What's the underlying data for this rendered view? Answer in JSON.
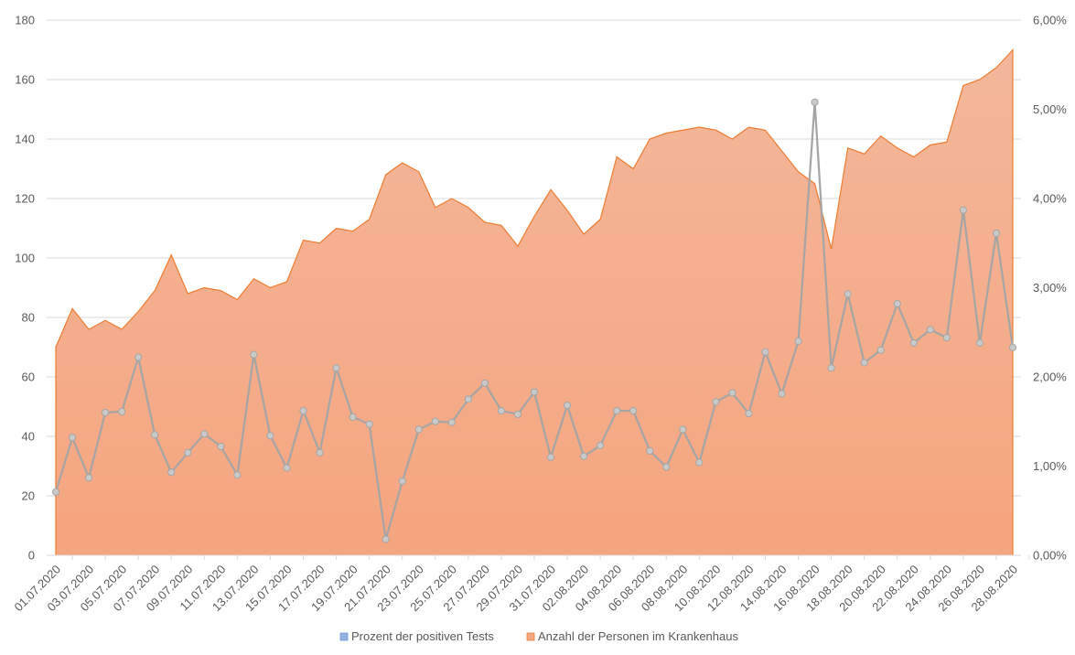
{
  "chart_data": {
    "type": "area",
    "title": "",
    "colors": {
      "area_top": "#f4b79b",
      "area_bottom": "#f5a57f",
      "area_line": "#ed7d31",
      "line": "#a5a5a5",
      "marker_fill": "#c9c9c9",
      "grid": "#d9d9d9",
      "legend_blue": "#8fb4e3",
      "legend_orange": "#f4a582"
    },
    "left_axis": {
      "min": 0,
      "max": 180,
      "step": 20,
      "ticks": [
        "0",
        "20",
        "40",
        "60",
        "80",
        "100",
        "120",
        "140",
        "160",
        "180"
      ]
    },
    "right_axis": {
      "min": 0,
      "max": 6,
      "step": 1,
      "ticks": [
        "0,00%",
        "1,00%",
        "2,00%",
        "3,00%",
        "4,00%",
        "5,00%",
        "6,00%"
      ]
    },
    "x_tick_labels": [
      "01.07.2020",
      "03.07.2020",
      "05.07.2020",
      "07.07.2020",
      "09.07.2020",
      "11.07.2020",
      "13.07.2020",
      "15.07.2020",
      "17.07.2020",
      "19.07.2020",
      "21.07.2020",
      "23.07.2020",
      "25.07.2020",
      "27.07.2020",
      "29.07.2020",
      "31.07.2020",
      "02.08.2020",
      "04.08.2020",
      "06.08.2020",
      "08.08.2020",
      "10.08.2020",
      "12.08.2020",
      "14.08.2020",
      "16.08.2020",
      "18.08.2020",
      "20.08.2020",
      "22.08.2020",
      "24.08.2020",
      "26.08.2020",
      "28.08.2020"
    ],
    "x_tick_positions": [
      0,
      2,
      4,
      6,
      8,
      10,
      12,
      14,
      16,
      18,
      20,
      22,
      24,
      26,
      28,
      30,
      32,
      34,
      36,
      38,
      40,
      42,
      44,
      46,
      48,
      50,
      52,
      54,
      56,
      58
    ],
    "series": [
      {
        "name": "Prozent der positiven Tests",
        "axis": "right",
        "type": "line",
        "values": [
          0.71,
          1.32,
          0.87,
          1.6,
          1.61,
          2.22,
          1.35,
          0.93,
          1.15,
          1.36,
          1.22,
          0.9,
          2.25,
          1.34,
          0.98,
          1.62,
          1.15,
          2.1,
          1.55,
          1.47,
          0.18,
          0.83,
          1.41,
          1.5,
          1.49,
          1.75,
          1.93,
          1.62,
          1.58,
          1.83,
          1.1,
          1.68,
          1.11,
          1.23,
          1.62,
          1.62,
          1.17,
          0.99,
          1.41,
          1.04,
          1.72,
          1.82,
          1.59,
          2.28,
          1.81,
          2.4,
          5.08,
          2.1,
          2.93,
          2.16,
          2.3,
          2.82,
          2.38,
          2.53,
          2.44,
          3.87,
          2.38,
          3.61,
          2.33
        ]
      },
      {
        "name": "Anzahl der Personen im Krankenhaus",
        "axis": "left",
        "type": "area",
        "values": [
          70,
          83,
          76,
          79,
          76,
          82,
          89,
          101,
          88,
          90,
          89,
          86,
          93,
          90,
          92,
          106,
          105,
          110,
          109,
          113,
          128,
          132,
          129,
          117,
          120,
          117,
          112,
          111,
          104,
          114,
          123,
          116,
          108,
          113,
          134,
          130,
          140,
          142,
          143,
          144,
          143,
          140,
          144,
          143,
          136,
          129,
          125,
          103,
          137,
          135,
          141,
          137,
          134,
          138,
          139,
          158,
          160,
          164,
          170
        ]
      }
    ],
    "legend": [
      {
        "label": "Prozent der positiven Tests"
      },
      {
        "label": "Anzahl der Personen im Krankenhaus"
      }
    ],
    "legend_position": "bottom",
    "grid": true
  }
}
